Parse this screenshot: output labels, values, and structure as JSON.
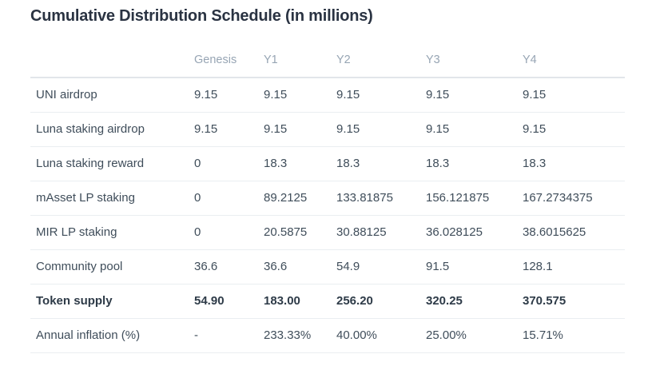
{
  "page": {
    "title": "Cumulative Distribution Schedule (in millions)"
  },
  "table": {
    "columns": [
      "",
      "Genesis",
      "Y1",
      "Y2",
      "Y3",
      "Y4"
    ],
    "rows": [
      {
        "label": "UNI airdrop",
        "bold": false,
        "values": [
          "9.15",
          "9.15",
          "9.15",
          "9.15",
          "9.15"
        ]
      },
      {
        "label": "Luna staking airdrop",
        "bold": false,
        "values": [
          "9.15",
          "9.15",
          "9.15",
          "9.15",
          "9.15"
        ]
      },
      {
        "label": "Luna staking reward",
        "bold": false,
        "values": [
          "0",
          "18.3",
          "18.3",
          "18.3",
          "18.3"
        ]
      },
      {
        "label": "mAsset LP staking",
        "bold": false,
        "values": [
          "0",
          "89.2125",
          "133.81875",
          "156.121875",
          "167.2734375"
        ]
      },
      {
        "label": "MIR LP staking",
        "bold": false,
        "values": [
          "0",
          "20.5875",
          "30.88125",
          "36.028125",
          "38.6015625"
        ]
      },
      {
        "label": "Community pool",
        "bold": false,
        "values": [
          "36.6",
          "36.6",
          "54.9",
          "91.5",
          "128.1"
        ]
      },
      {
        "label": "Token supply",
        "bold": true,
        "values": [
          "54.90",
          "183.00",
          "256.20",
          "320.25",
          "370.575"
        ]
      },
      {
        "label": "Annual inflation (%)",
        "bold": false,
        "values": [
          "-",
          "233.33%",
          "40.00%",
          "25.00%",
          "15.71%"
        ]
      }
    ]
  },
  "colors": {
    "title": "#2a3342",
    "header-text": "#97a5b4",
    "body-text": "#3f4d5a",
    "bold-text": "#2e3b48",
    "header-border": "#e2e6ea",
    "row-border": "#eaeef1",
    "bg": "#ffffff"
  }
}
